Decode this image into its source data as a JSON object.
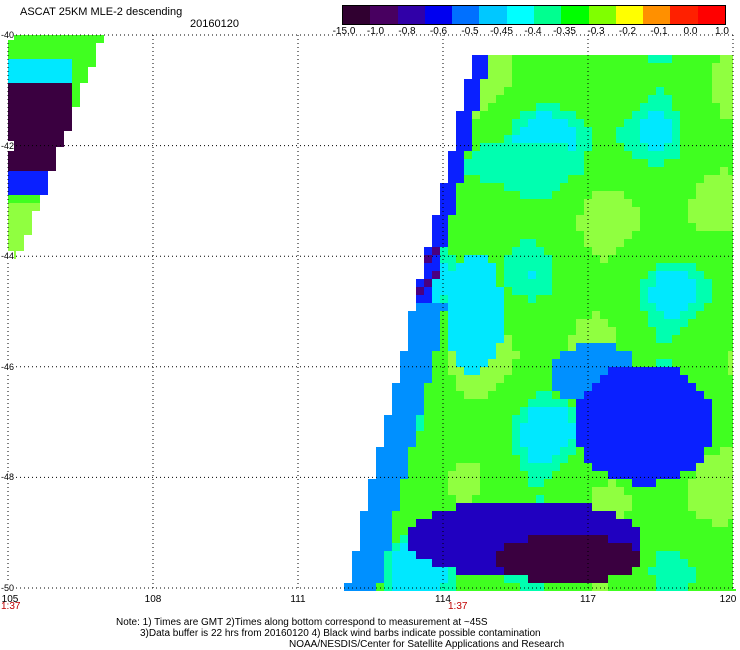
{
  "header": {
    "title": "ASCAT 25KM MLE-2 descending",
    "date": "20160120"
  },
  "colorbar": {
    "labels": [
      "-15.0",
      "-1.0",
      "-0.8",
      "-0.6",
      "-0.5",
      "-0.45",
      "-0.4",
      "-0.35",
      "-0.3",
      "-0.2",
      "-0.1",
      "0.0",
      "1.0"
    ],
    "colors": [
      "#300030",
      "#480060",
      "#3000a8",
      "#0000f0",
      "#0070ff",
      "#00c8ff",
      "#00ffff",
      "#00ff90",
      "#00ff00",
      "#80ff00",
      "#ffff00",
      "#ff9000",
      "#ff2000",
      "#ff0000"
    ]
  },
  "axes": {
    "lat_labels": [
      "-40",
      "-42",
      "-44",
      "-46",
      "-48",
      "-50"
    ],
    "lon_labels": [
      "105",
      "108",
      "111",
      "114",
      "117",
      "120"
    ],
    "lat_range": [
      -50,
      -40
    ],
    "lon_range": [
      105,
      120
    ],
    "time_labels": [
      "1:37",
      "1:37"
    ]
  },
  "notes": {
    "line1": "Note: 1) Times are GMT 2)Times along bottom correspond to measurement at ~45S",
    "line2": "3)Data buffer is 22 hrs from 20160120 4) Black wind barbs indicate possible contamination",
    "line3": "NOAA/NESDIS/Center for Satellite Applications and Research"
  }
}
